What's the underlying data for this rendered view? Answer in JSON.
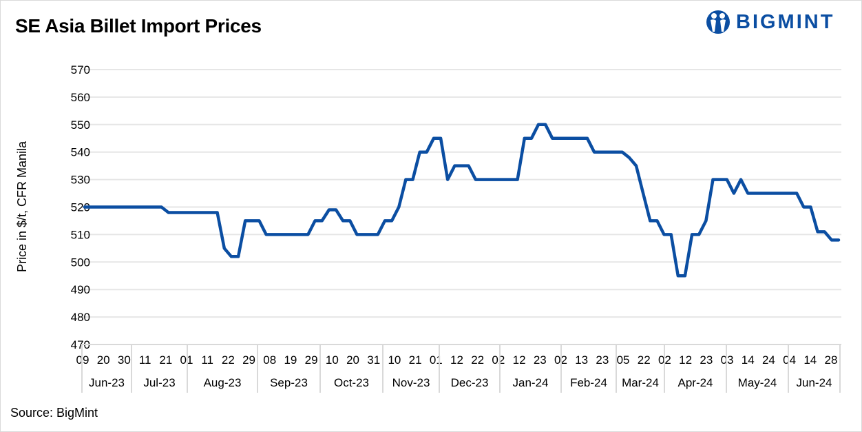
{
  "title": "SE Asia Billet Import Prices",
  "source": "Source: BigMint",
  "logo": {
    "text": "BIGMINT",
    "color": "#0b4ea2"
  },
  "chart_data": {
    "type": "line",
    "title": "SE Asia Billet Import Prices",
    "ylabel": "Price in $/t, CFR Manila",
    "xlabel": "",
    "ylim": [
      470,
      570
    ],
    "yticks": [
      470,
      480,
      490,
      500,
      510,
      520,
      530,
      540,
      550,
      560,
      570
    ],
    "grid": true,
    "line_color": "#0b4ea2",
    "x_tick_labels": [
      "09",
      "20",
      "30",
      "11",
      "21",
      "01",
      "11",
      "22",
      "29",
      "08",
      "19",
      "29",
      "10",
      "20",
      "31",
      "10",
      "21",
      "01",
      "12",
      "22",
      "02",
      "12",
      "23",
      "02",
      "13",
      "23",
      "05",
      "22",
      "02",
      "12",
      "23",
      "03",
      "14",
      "24",
      "04",
      "14",
      "28"
    ],
    "x_month_labels": [
      "Jun-23",
      "Jul-23",
      "Aug-23",
      "Sep-23",
      "Oct-23",
      "Nov-23",
      "Dec-23",
      "Jan-24",
      "Feb-24",
      "Mar-24",
      "Apr-24",
      "May-24",
      "Jun-24"
    ],
    "series": [
      {
        "values": [
          520,
          520,
          520,
          520,
          520,
          520,
          520,
          520,
          520,
          520,
          520,
          520,
          518,
          518,
          518,
          518,
          518,
          518,
          518,
          518,
          505,
          502,
          502,
          515,
          515,
          515,
          510,
          510,
          510,
          510,
          510,
          510,
          510,
          515,
          515,
          519,
          519,
          515,
          515,
          510,
          510,
          510,
          510,
          515,
          515,
          520,
          530,
          530,
          540,
          540,
          545,
          545,
          530,
          535,
          535,
          535,
          530,
          530,
          530,
          530,
          530,
          530,
          530,
          545,
          545,
          550,
          550,
          545,
          545,
          545,
          545,
          545,
          545,
          540,
          540,
          540,
          540,
          540,
          538,
          535,
          525,
          515,
          515,
          510,
          510,
          495,
          495,
          510,
          510,
          515,
          530,
          530,
          530,
          525,
          530,
          525,
          525,
          525,
          525,
          525,
          525,
          525,
          525,
          520,
          520,
          511,
          511,
          508,
          508
        ]
      }
    ]
  }
}
